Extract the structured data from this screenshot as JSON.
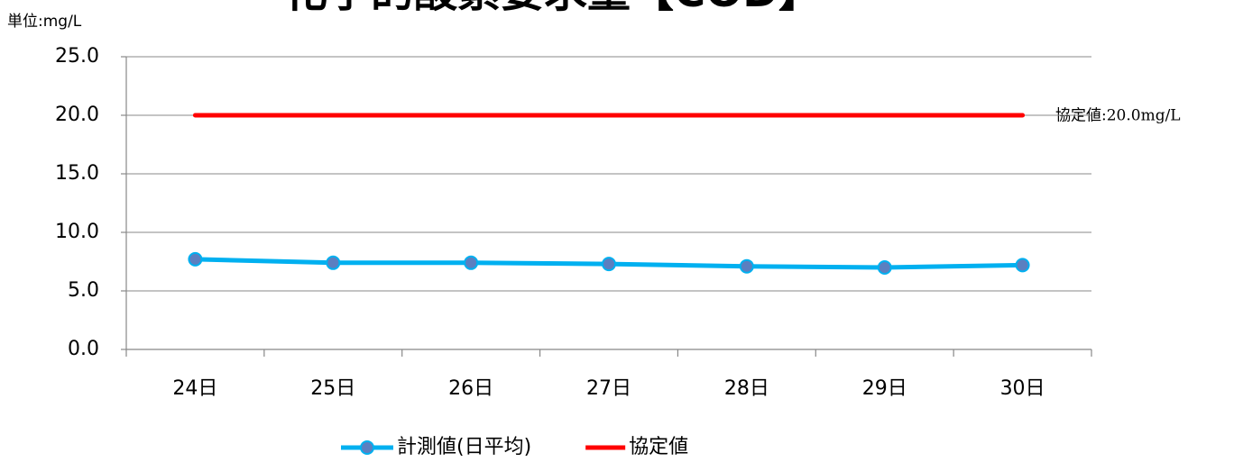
{
  "chart_data": {
    "type": "line",
    "title": "化学的酸素要求量【COD】",
    "unit_label": "単位:mg/L",
    "annotation": "協定値:20.0mg/L",
    "categories": [
      "24日",
      "25日",
      "26日",
      "27日",
      "28日",
      "29日",
      "30日"
    ],
    "series": [
      {
        "name": "計測値(日平均)",
        "color": "#00b0f0",
        "marker": "#5b7fc0",
        "values": [
          7.7,
          7.4,
          7.4,
          7.3,
          7.1,
          7.0,
          7.2
        ]
      },
      {
        "name": "協定値",
        "color": "#ff0000",
        "values": [
          20,
          20,
          20,
          20,
          20,
          20,
          20
        ]
      }
    ],
    "ylim": [
      0,
      25
    ],
    "yticks": [
      {
        "value": 0,
        "label": "0.0"
      },
      {
        "value": 5,
        "label": "5.0"
      },
      {
        "value": 10,
        "label": "10.0"
      },
      {
        "value": 15,
        "label": "15.0"
      },
      {
        "value": 20,
        "label": "20.0"
      },
      {
        "value": 25,
        "label": "25.0"
      }
    ],
    "grid": true,
    "legend": "bottom"
  }
}
